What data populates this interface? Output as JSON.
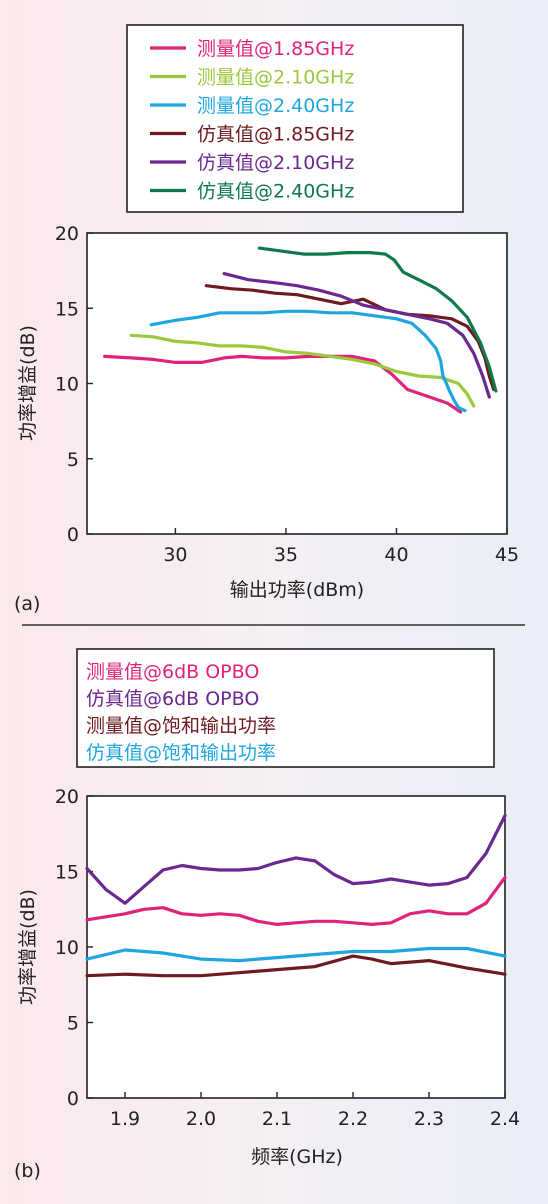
{
  "chart_data": [
    {
      "type": "line",
      "panel_label": "(a)",
      "xlabel": "输出功率(dBm)",
      "ylabel": "功率增益(dB)",
      "xlim": [
        26,
        45
      ],
      "ylim": [
        0,
        20
      ],
      "xticks": [
        30,
        35,
        40,
        45
      ],
      "yticks": [
        0,
        5,
        10,
        15,
        20
      ],
      "grid": false,
      "legend_position": "top",
      "series": [
        {
          "name": "测量值@1.85GHz",
          "color": "#e0237a",
          "points": [
            [
              26.8,
              11.8
            ],
            [
              28,
              11.7
            ],
            [
              29,
              11.6
            ],
            [
              30,
              11.4
            ],
            [
              31.2,
              11.4
            ],
            [
              32.2,
              11.7
            ],
            [
              33,
              11.8
            ],
            [
              34,
              11.7
            ],
            [
              35,
              11.7
            ],
            [
              36,
              11.8
            ],
            [
              37,
              11.8
            ],
            [
              38,
              11.8
            ],
            [
              39,
              11.5
            ],
            [
              39.8,
              10.6
            ],
            [
              40.5,
              9.6
            ],
            [
              41.5,
              9.1
            ],
            [
              42.3,
              8.7
            ],
            [
              42.9,
              8.1
            ]
          ]
        },
        {
          "name": "测量值@2.10GHz",
          "color": "#9bc93c",
          "points": [
            [
              28,
              13.2
            ],
            [
              29,
              13.1
            ],
            [
              30,
              12.8
            ],
            [
              31,
              12.7
            ],
            [
              32,
              12.5
            ],
            [
              33,
              12.5
            ],
            [
              34,
              12.4
            ],
            [
              35,
              12.1
            ],
            [
              36,
              12.0
            ],
            [
              37,
              11.8
            ],
            [
              38,
              11.6
            ],
            [
              39,
              11.3
            ],
            [
              40,
              10.8
            ],
            [
              41,
              10.5
            ],
            [
              42,
              10.4
            ],
            [
              42.8,
              10.0
            ],
            [
              43.2,
              9.3
            ],
            [
              43.5,
              8.5
            ]
          ]
        },
        {
          "name": "测量值@2.40GHz",
          "color": "#1fa6e0",
          "points": [
            [
              28.9,
              13.9
            ],
            [
              30,
              14.2
            ],
            [
              31,
              14.4
            ],
            [
              32,
              14.7
            ],
            [
              33,
              14.7
            ],
            [
              34,
              14.7
            ],
            [
              35,
              14.8
            ],
            [
              36,
              14.8
            ],
            [
              37,
              14.7
            ],
            [
              38,
              14.7
            ],
            [
              39,
              14.5
            ],
            [
              40,
              14.3
            ],
            [
              40.7,
              14.0
            ],
            [
              41.3,
              13.2
            ],
            [
              41.8,
              12.3
            ],
            [
              42.0,
              11.5
            ],
            [
              42.1,
              10.5
            ],
            [
              42.2,
              10.2
            ],
            [
              42.4,
              9.5
            ],
            [
              42.6,
              8.9
            ],
            [
              42.8,
              8.4
            ],
            [
              43.1,
              8.2
            ]
          ]
        },
        {
          "name": "仿真值@1.85GHz",
          "color": "#6e1a20",
          "points": [
            [
              31.4,
              16.5
            ],
            [
              32.5,
              16.3
            ],
            [
              33.5,
              16.2
            ],
            [
              34.5,
              16.0
            ],
            [
              35.5,
              15.9
            ],
            [
              36.5,
              15.6
            ],
            [
              37.5,
              15.3
            ],
            [
              38.5,
              15.6
            ],
            [
              39.5,
              14.9
            ],
            [
              40.5,
              14.6
            ],
            [
              41.5,
              14.5
            ],
            [
              42.5,
              14.3
            ],
            [
              43.2,
              13.8
            ],
            [
              43.7,
              12.8
            ],
            [
              44.0,
              11.7
            ],
            [
              44.2,
              10.5
            ],
            [
              44.4,
              9.6
            ]
          ]
        },
        {
          "name": "仿真值@2.10GHz",
          "color": "#6a2890",
          "points": [
            [
              32.2,
              17.3
            ],
            [
              33.3,
              16.9
            ],
            [
              34.5,
              16.7
            ],
            [
              35.5,
              16.5
            ],
            [
              36.5,
              16.2
            ],
            [
              37.5,
              15.8
            ],
            [
              38.5,
              15.2
            ],
            [
              39.5,
              14.9
            ],
            [
              40.5,
              14.6
            ],
            [
              41.5,
              14.3
            ],
            [
              42.3,
              14.0
            ],
            [
              43.0,
              13.2
            ],
            [
              43.5,
              12.0
            ],
            [
              43.9,
              10.5
            ],
            [
              44.2,
              9.1
            ]
          ]
        },
        {
          "name": "仿真值@2.40GHz",
          "color": "#0e7a4a",
          "points": [
            [
              33.8,
              19.0
            ],
            [
              34.8,
              18.8
            ],
            [
              35.8,
              18.6
            ],
            [
              36.8,
              18.6
            ],
            [
              37.8,
              18.7
            ],
            [
              38.8,
              18.7
            ],
            [
              39.5,
              18.6
            ],
            [
              39.9,
              18.2
            ],
            [
              40.3,
              17.4
            ],
            [
              41,
              16.9
            ],
            [
              41.8,
              16.3
            ],
            [
              42.5,
              15.5
            ],
            [
              43.2,
              14.4
            ],
            [
              43.8,
              12.7
            ],
            [
              44.2,
              11.1
            ],
            [
              44.5,
              9.5
            ]
          ]
        }
      ]
    },
    {
      "type": "line",
      "panel_label": "(b)",
      "xlabel": "频率(GHz)",
      "ylabel": "功率增益(dB)",
      "xlim": [
        1.85,
        2.4
      ],
      "ylim": [
        0,
        20
      ],
      "xticks": [
        1.9,
        2.0,
        2.1,
        2.2,
        2.3,
        2.4
      ],
      "xtick_labels": [
        "1.9",
        "2.0",
        "2.1",
        "2.2",
        "2.3",
        "2.4"
      ],
      "yticks": [
        0,
        5,
        10,
        15,
        20
      ],
      "grid": false,
      "legend_position": "top",
      "series": [
        {
          "name": "测量值@6dB OPBO",
          "color": "#e0237a",
          "points": [
            [
              1.85,
              11.8
            ],
            [
              1.875,
              12.0
            ],
            [
              1.9,
              12.2
            ],
            [
              1.925,
              12.5
            ],
            [
              1.95,
              12.6
            ],
            [
              1.975,
              12.2
            ],
            [
              2.0,
              12.1
            ],
            [
              2.025,
              12.2
            ],
            [
              2.05,
              12.1
            ],
            [
              2.075,
              11.7
            ],
            [
              2.1,
              11.5
            ],
            [
              2.125,
              11.6
            ],
            [
              2.15,
              11.7
            ],
            [
              2.175,
              11.7
            ],
            [
              2.2,
              11.6
            ],
            [
              2.225,
              11.5
            ],
            [
              2.25,
              11.6
            ],
            [
              2.275,
              12.2
            ],
            [
              2.3,
              12.4
            ],
            [
              2.325,
              12.2
            ],
            [
              2.35,
              12.2
            ],
            [
              2.375,
              12.9
            ],
            [
              2.4,
              14.6
            ]
          ]
        },
        {
          "name": "仿真值@6dB OPBO",
          "color": "#6a2890",
          "points": [
            [
              1.85,
              15.2
            ],
            [
              1.875,
              13.8
            ],
            [
              1.9,
              12.9
            ],
            [
              1.925,
              14.0
            ],
            [
              1.95,
              15.1
            ],
            [
              1.975,
              15.4
            ],
            [
              2.0,
              15.2
            ],
            [
              2.025,
              15.1
            ],
            [
              2.05,
              15.1
            ],
            [
              2.075,
              15.2
            ],
            [
              2.1,
              15.6
            ],
            [
              2.125,
              15.9
            ],
            [
              2.15,
              15.7
            ],
            [
              2.175,
              14.8
            ],
            [
              2.2,
              14.2
            ],
            [
              2.225,
              14.3
            ],
            [
              2.25,
              14.5
            ],
            [
              2.275,
              14.3
            ],
            [
              2.3,
              14.1
            ],
            [
              2.325,
              14.2
            ],
            [
              2.35,
              14.6
            ],
            [
              2.375,
              16.2
            ],
            [
              2.4,
              18.7
            ]
          ]
        },
        {
          "name": "测量值@饱和输出功率",
          "color": "#6e1a20",
          "points": [
            [
              1.85,
              8.1
            ],
            [
              1.9,
              8.2
            ],
            [
              1.95,
              8.1
            ],
            [
              2.0,
              8.1
            ],
            [
              2.05,
              8.3
            ],
            [
              2.1,
              8.5
            ],
            [
              2.15,
              8.7
            ],
            [
              2.2,
              9.4
            ],
            [
              2.225,
              9.2
            ],
            [
              2.25,
              8.9
            ],
            [
              2.3,
              9.1
            ],
            [
              2.35,
              8.6
            ],
            [
              2.4,
              8.2
            ]
          ]
        },
        {
          "name": "仿真值@饱和输出功率",
          "color": "#1fa6e0",
          "points": [
            [
              1.85,
              9.2
            ],
            [
              1.9,
              9.8
            ],
            [
              1.95,
              9.6
            ],
            [
              2.0,
              9.2
            ],
            [
              2.05,
              9.1
            ],
            [
              2.1,
              9.3
            ],
            [
              2.15,
              9.5
            ],
            [
              2.2,
              9.7
            ],
            [
              2.25,
              9.7
            ],
            [
              2.3,
              9.9
            ],
            [
              2.35,
              9.9
            ],
            [
              2.4,
              9.4
            ]
          ]
        }
      ]
    }
  ]
}
